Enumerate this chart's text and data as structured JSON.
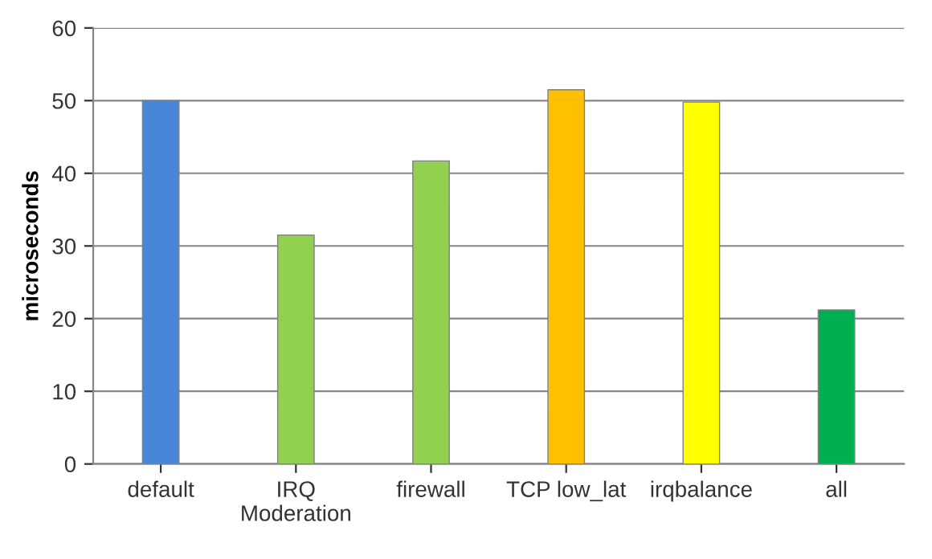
{
  "chart_data": {
    "type": "bar",
    "ylabel": "microseconds",
    "categories": [
      "default",
      "IRQ\nModeration",
      "firewall",
      "TCP low_lat",
      "irqbalance",
      "all"
    ],
    "values": [
      50,
      31.5,
      41.7,
      51.5,
      49.8,
      21.2
    ],
    "colors": [
      "#4a86d8",
      "#92d050",
      "#92d050",
      "#ffc000",
      "#ffff00",
      "#00b050"
    ],
    "ylim": [
      0,
      60
    ],
    "yticks": [
      0,
      10,
      20,
      30,
      40,
      50,
      60
    ],
    "grid": "y"
  }
}
